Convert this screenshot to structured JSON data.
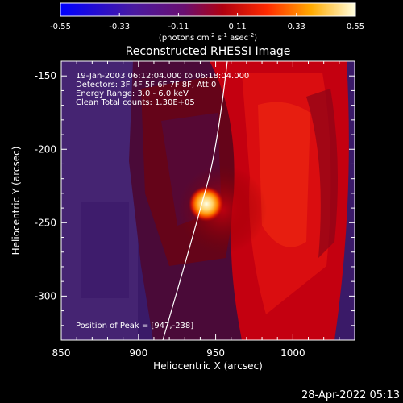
{
  "colorbar": {
    "ticks": [
      "-0.55",
      "-0.33",
      "-0.11",
      "0.11",
      "0.33",
      "0.55"
    ],
    "units_main": "(photons cm",
    "units_sup1": "-2",
    "units_mid": " s",
    "units_sup2": "-1",
    "units_end": " asec",
    "units_sup3": "-2",
    "units_close": ")"
  },
  "image": {
    "title": "Reconstructed RHESSI Image",
    "xlabel": "Heliocentric X (arcsec)",
    "ylabel": "Heliocentric Y (arcsec)",
    "xticks": [
      "850",
      "900",
      "950",
      "1000"
    ],
    "yticks": [
      "-150",
      "-200",
      "-250",
      "-300"
    ],
    "xlim": [
      850,
      1040
    ],
    "ylim": [
      -330,
      -140
    ],
    "info": [
      "19-Jan-2003 06:12:04.000 to 06:18:04.000",
      "Detectors: 3F 4F 5F 6F 7F 8F, Att 0",
      "Energy Range: 3.0 - 6.0 keV",
      "Clean     Total counts: 1.30E+05"
    ],
    "peak_label": "Position of Peak = [947,-238]",
    "peak": [
      947,
      -238
    ]
  },
  "timestamp": "28-Apr-2022 05:13"
}
